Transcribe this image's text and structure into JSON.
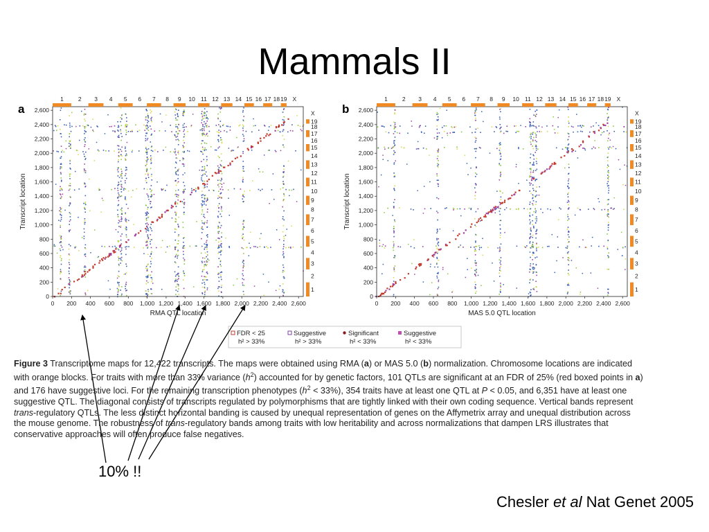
{
  "slide": {
    "title": "Mammals II",
    "callout": "10% !!",
    "citation": {
      "author": "Chesler",
      "etal": "et al",
      "rest": "Nat Genet 2005"
    }
  },
  "figure": {
    "caption": [
      {
        "b": "Figure 3"
      },
      {
        "t": "  Transcriptome maps for 12,422 transcripts. The maps were obtained using RMA ("
      },
      {
        "b": "a"
      },
      {
        "t": ") or MAS 5.0 ("
      },
      {
        "b": "b"
      },
      {
        "t": ") normalization. Chromosome locations are indicated with orange blocks. For traits with more than 33% variance ("
      },
      {
        "i": "h"
      },
      {
        "sup": "2"
      },
      {
        "t": ") accounted for by genetic factors, 101 QTLs are significant at an FDR of 25% (red boxed points in "
      },
      {
        "b": "a"
      },
      {
        "t": ") and 176 have suggestive loci. For the remaining transcription phenotypes ("
      },
      {
        "i": "h"
      },
      {
        "sup": "2"
      },
      {
        "t": " < 33%), 354 traits have at least one QTL at "
      },
      {
        "i": "P"
      },
      {
        "t": " < 0.05, and 6,351 have at least one suggestive QTL. The diagonal consists of transcripts regulated by polymorphisms that are tightly linked with their own coding sequence. Vertical bands represent "
      },
      {
        "i": "trans"
      },
      {
        "t": "-regulatory QTLs. The less distinct horizontal banding is caused by unequal representation of genes on the Affymetrix array and unequal distribution across the mouse genome. The robustness of "
      },
      {
        "i": "trans"
      },
      {
        "t": "-regulatory bands among traits with low heritability and across normalizations that dampen LRS illustrates that conservative approaches will often produce false negatives."
      }
    ],
    "legend": [
      {
        "label": "FDR < 25",
        "sub": "h² > 33%",
        "marker": "open-square",
        "color": "#c0392b"
      },
      {
        "label": "Suggestive",
        "sub": "h² > 33%",
        "marker": "open-square",
        "color": "#7b3fa0"
      },
      {
        "label": "Significant",
        "sub": "h² < 33%",
        "marker": "dot",
        "color": "#8b1a1a"
      },
      {
        "label": "Suggestive",
        "sub": "h² < 33%",
        "marker": "filled-square",
        "color": "#c050b0"
      }
    ]
  },
  "colors": {
    "chromosome_block": "#f08a24",
    "dot_blue": "#3a5fb0",
    "dot_green": "#8cc63f",
    "dot_yellow": "#d8d850",
    "dot_purple": "#a040a0",
    "diagonal": "#c0392b",
    "arrow": "#000000"
  },
  "chart_data": [
    {
      "type": "scatter",
      "panel": "a",
      "xlabel": "RMA QTL location",
      "ylabel": "Transcript location",
      "xlim": [
        0,
        2650
      ],
      "ylim": [
        0,
        2650
      ],
      "xticks": [
        0,
        200,
        400,
        600,
        800,
        1000,
        1200,
        1400,
        1600,
        1800,
        2000,
        2200,
        2400,
        2600
      ],
      "yticks": [
        0,
        200,
        400,
        600,
        800,
        1000,
        1200,
        1400,
        1600,
        1800,
        2000,
        2200,
        2400,
        2600
      ],
      "tick_labels": [
        "0",
        "200",
        "400",
        "600",
        "800",
        "1,000",
        "1,200",
        "1,400",
        "1,600",
        "1,800",
        "2,000",
        "2,200",
        "2,400",
        "2,600"
      ],
      "chromosomes": [
        "1",
        "2",
        "3",
        "4",
        "5",
        "6",
        "7",
        "8",
        "9",
        "10",
        "11",
        "12",
        "13",
        "14",
        "15",
        "16",
        "17",
        "18",
        "19",
        "X"
      ],
      "chromosome_bounds": [
        0,
        197,
        378,
        538,
        694,
        846,
        996,
        1147,
        1278,
        1406,
        1538,
        1659,
        1781,
        1901,
        2027,
        2128,
        2226,
        2322,
        2413,
        2474,
        2640
      ],
      "vertical_bands": [
        80,
        175,
        335,
        690,
        720,
        770,
        985,
        1000,
        1035,
        1295,
        1320,
        1380,
        1575,
        1600,
        1625,
        1750,
        1775,
        2010,
        2435
      ],
      "horizontal_bands": [
        2320,
        2390,
        2040,
        1500,
        700
      ],
      "series": [
        {
          "name": "FDR < 25, h² > 33%",
          "marker": "open-square",
          "color": "#c0392b"
        },
        {
          "name": "Suggestive, h² > 33%",
          "marker": "open-square",
          "color": "#7b3fa0"
        },
        {
          "name": "Significant, h² < 33%",
          "marker": "dot",
          "color": "#8b1a1a"
        },
        {
          "name": "Suggestive, h² < 33%",
          "marker": "filled-square",
          "color": "#c050b0"
        }
      ]
    },
    {
      "type": "scatter",
      "panel": "b",
      "xlabel": "MAS 5.0 QTL location",
      "ylabel": "Transcript location",
      "xlim": [
        0,
        2650
      ],
      "ylim": [
        0,
        2650
      ],
      "xticks": [
        0,
        200,
        400,
        600,
        800,
        1000,
        1200,
        1400,
        1600,
        1800,
        2000,
        2200,
        2400,
        2600
      ],
      "yticks": [
        0,
        200,
        400,
        600,
        800,
        1000,
        1200,
        1400,
        1600,
        1800,
        2000,
        2200,
        2400,
        2600
      ],
      "tick_labels": [
        "0",
        "200",
        "400",
        "600",
        "800",
        "1,000",
        "1,200",
        "1,400",
        "1,600",
        "1,800",
        "2,000",
        "2,200",
        "2,400",
        "2,600"
      ],
      "chromosomes": [
        "1",
        "2",
        "3",
        "4",
        "5",
        "6",
        "7",
        "8",
        "9",
        "10",
        "11",
        "12",
        "13",
        "14",
        "15",
        "16",
        "17",
        "18",
        "19",
        "X"
      ],
      "chromosome_bounds": [
        0,
        197,
        378,
        538,
        694,
        846,
        996,
        1147,
        1278,
        1406,
        1538,
        1659,
        1781,
        1901,
        2027,
        2128,
        2226,
        2322,
        2413,
        2474,
        2640
      ],
      "vertical_bands": [
        180,
        640,
        1040,
        1300,
        1620,
        1650,
        1680,
        2020,
        2440
      ],
      "horizontal_bands": [
        2380,
        2300,
        2080,
        1230,
        700
      ],
      "series": [
        {
          "name": "FDR < 25, h² > 33%",
          "marker": "open-square",
          "color": "#c0392b"
        },
        {
          "name": "Suggestive, h² > 33%",
          "marker": "open-square",
          "color": "#7b3fa0"
        },
        {
          "name": "Significant, h² < 33%",
          "marker": "dot",
          "color": "#8b1a1a"
        },
        {
          "name": "Suggestive, h² < 33%",
          "marker": "filled-square",
          "color": "#c050b0"
        }
      ]
    }
  ]
}
